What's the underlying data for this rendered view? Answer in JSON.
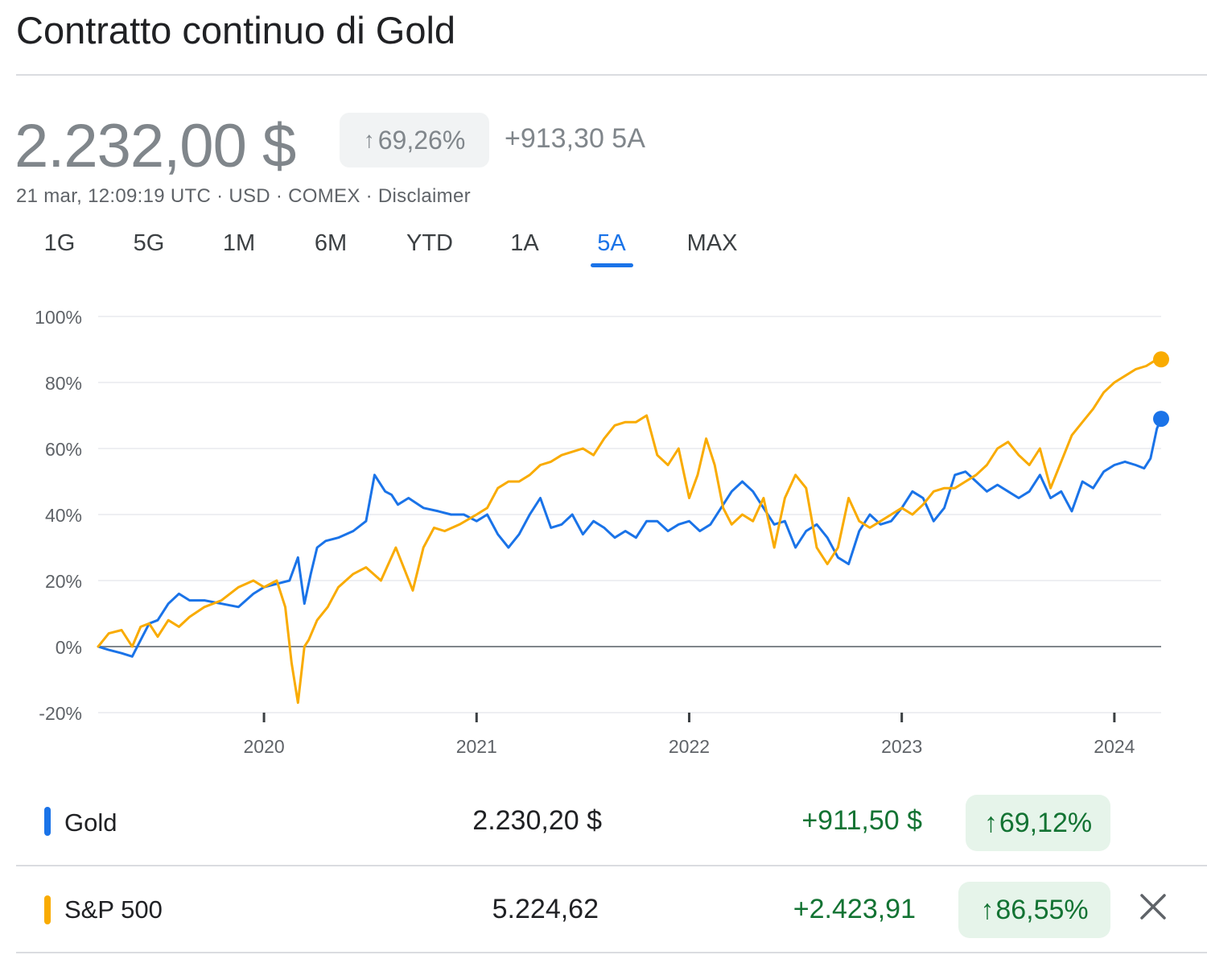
{
  "header": {
    "title": "Contratto continuo di Gold",
    "price": "2.232,00 $",
    "change_pct": "69,26%",
    "change_abs": "+913,30 5A",
    "meta_text": "21 mar, 12:09:19 UTC · USD · COMEX · ",
    "disclaimer": "Disclaimer"
  },
  "tabs": [
    {
      "label": "1G"
    },
    {
      "label": "5G"
    },
    {
      "label": "1M"
    },
    {
      "label": "6M"
    },
    {
      "label": "YTD"
    },
    {
      "label": "1A"
    },
    {
      "label": "5A"
    },
    {
      "label": "MAX"
    }
  ],
  "active_tab": "5A",
  "colors": {
    "gold": "#1a73e8",
    "sp500": "#f9ab00",
    "positive": "#137333",
    "positive_bg": "#e6f4ea",
    "accent": "#1a73e8"
  },
  "chart_data": {
    "type": "line",
    "title": "",
    "xlabel": "",
    "ylabel": "",
    "y_unit": "%",
    "ylim": [
      -20,
      100
    ],
    "y_ticks": [
      -20,
      0,
      20,
      40,
      60,
      80,
      100
    ],
    "y_tick_labels": [
      "-20%",
      "0%",
      "20%",
      "40%",
      "60%",
      "80%",
      "100%"
    ],
    "xlim": [
      2019.22,
      2024.22
    ],
    "x_ticks": [
      2020,
      2021,
      2022,
      2023,
      2024
    ],
    "x_tick_labels": [
      "2020",
      "2021",
      "2022",
      "2023",
      "2024"
    ],
    "grid": true,
    "series": [
      {
        "name": "Gold",
        "color": "#1a73e8",
        "x": [
          2019.22,
          2019.27,
          2019.33,
          2019.38,
          2019.42,
          2019.46,
          2019.5,
          2019.55,
          2019.6,
          2019.65,
          2019.72,
          2019.8,
          2019.88,
          2019.95,
          2020.0,
          2020.06,
          2020.12,
          2020.16,
          2020.19,
          2020.22,
          2020.25,
          2020.29,
          2020.35,
          2020.42,
          2020.48,
          2020.52,
          2020.57,
          2020.6,
          2020.63,
          2020.68,
          2020.75,
          2020.82,
          2020.88,
          2020.94,
          2021.0,
          2021.05,
          2021.1,
          2021.15,
          2021.2,
          2021.25,
          2021.3,
          2021.35,
          2021.4,
          2021.45,
          2021.5,
          2021.55,
          2021.6,
          2021.65,
          2021.7,
          2021.75,
          2021.8,
          2021.85,
          2021.9,
          2021.95,
          2022.0,
          2022.05,
          2022.1,
          2022.15,
          2022.2,
          2022.25,
          2022.3,
          2022.35,
          2022.4,
          2022.45,
          2022.5,
          2022.55,
          2022.6,
          2022.65,
          2022.7,
          2022.75,
          2022.8,
          2022.85,
          2022.9,
          2022.95,
          2023.0,
          2023.05,
          2023.1,
          2023.15,
          2023.2,
          2023.25,
          2023.3,
          2023.35,
          2023.4,
          2023.45,
          2023.5,
          2023.55,
          2023.6,
          2023.65,
          2023.7,
          2023.75,
          2023.8,
          2023.85,
          2023.9,
          2023.95,
          2024.0,
          2024.05,
          2024.1,
          2024.14,
          2024.17,
          2024.2,
          2024.22
        ],
        "y": [
          0,
          -1,
          -2,
          -3,
          2,
          7,
          8,
          13,
          16,
          14,
          14,
          13,
          12,
          16,
          18,
          19,
          20,
          27,
          13,
          22,
          30,
          32,
          33,
          35,
          38,
          52,
          47,
          46,
          43,
          45,
          42,
          41,
          40,
          40,
          38,
          40,
          34,
          30,
          34,
          40,
          45,
          36,
          37,
          40,
          34,
          38,
          36,
          33,
          35,
          33,
          38,
          38,
          35,
          37,
          38,
          35,
          37,
          42,
          47,
          50,
          47,
          42,
          37,
          38,
          30,
          35,
          37,
          33,
          27,
          25,
          35,
          40,
          37,
          38,
          42,
          47,
          45,
          38,
          42,
          52,
          53,
          50,
          47,
          49,
          47,
          45,
          47,
          52,
          45,
          47,
          41,
          50,
          48,
          53,
          55,
          56,
          55,
          54,
          57,
          66,
          69
        ]
      },
      {
        "name": "S&P 500",
        "color": "#f9ab00",
        "x": [
          2019.22,
          2019.27,
          2019.33,
          2019.38,
          2019.42,
          2019.46,
          2019.5,
          2019.55,
          2019.6,
          2019.65,
          2019.72,
          2019.8,
          2019.88,
          2019.95,
          2020.0,
          2020.06,
          2020.1,
          2020.13,
          2020.16,
          2020.19,
          2020.21,
          2020.25,
          2020.3,
          2020.35,
          2020.42,
          2020.48,
          2020.55,
          2020.62,
          2020.7,
          2020.75,
          2020.8,
          2020.85,
          2020.92,
          2021.0,
          2021.05,
          2021.1,
          2021.15,
          2021.2,
          2021.25,
          2021.3,
          2021.35,
          2021.4,
          2021.45,
          2021.5,
          2021.55,
          2021.6,
          2021.65,
          2021.7,
          2021.75,
          2021.8,
          2021.85,
          2021.9,
          2021.95,
          2022.0,
          2022.04,
          2022.08,
          2022.12,
          2022.16,
          2022.2,
          2022.25,
          2022.3,
          2022.35,
          2022.4,
          2022.45,
          2022.5,
          2022.55,
          2022.6,
          2022.65,
          2022.7,
          2022.75,
          2022.8,
          2022.85,
          2022.9,
          2022.95,
          2023.0,
          2023.05,
          2023.1,
          2023.15,
          2023.2,
          2023.25,
          2023.3,
          2023.35,
          2023.4,
          2023.45,
          2023.5,
          2023.55,
          2023.6,
          2023.65,
          2023.7,
          2023.75,
          2023.8,
          2023.85,
          2023.9,
          2023.95,
          2024.0,
          2024.05,
          2024.1,
          2024.15,
          2024.2,
          2024.22
        ],
        "y": [
          0,
          4,
          5,
          0,
          6,
          7,
          3,
          8,
          6,
          9,
          12,
          14,
          18,
          20,
          18,
          20,
          12,
          -5,
          -17,
          0,
          2,
          8,
          12,
          18,
          22,
          24,
          20,
          30,
          17,
          30,
          36,
          35,
          37,
          40,
          42,
          48,
          50,
          50,
          52,
          55,
          56,
          58,
          59,
          60,
          58,
          63,
          67,
          68,
          68,
          70,
          58,
          55,
          60,
          45,
          52,
          63,
          55,
          42,
          37,
          40,
          38,
          45,
          30,
          45,
          52,
          48,
          30,
          25,
          30,
          45,
          38,
          36,
          38,
          40,
          42,
          40,
          43,
          47,
          48,
          48,
          50,
          52,
          55,
          60,
          62,
          58,
          55,
          60,
          48,
          56,
          64,
          68,
          72,
          77,
          80,
          82,
          84,
          85,
          87,
          87
        ]
      }
    ]
  },
  "legend": [
    {
      "name": "Gold",
      "price": "2.230,20 $",
      "change": "+911,50 $",
      "pct": "69,12%",
      "color": "#1a73e8"
    },
    {
      "name": "S&P 500",
      "price": "5.224,62",
      "change": "+2.423,91",
      "pct": "86,55%",
      "color": "#f9ab00"
    }
  ]
}
